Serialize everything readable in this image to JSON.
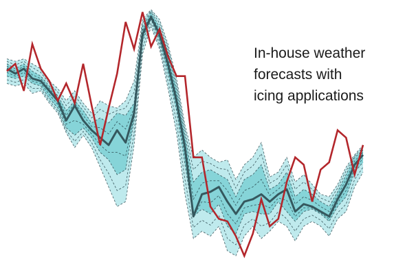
{
  "caption": {
    "lines": [
      "In-house weather",
      "forecasts with",
      "icing applications"
    ]
  },
  "colors": {
    "band_outer": "#bfeaed",
    "band_mid": "#86d4d8",
    "band_inner": "#4aaeb4",
    "dashed": "#1f3a40",
    "median": "#35585e",
    "observed": "#b3262b"
  },
  "chart_data": {
    "type": "line",
    "x_count": 43,
    "ylim": [
      0,
      100
    ],
    "grid": false,
    "axes_shown": false,
    "ensemble": {
      "min": [
        70,
        69,
        70,
        66,
        67,
        62,
        58,
        50,
        44,
        49,
        44,
        36,
        28,
        20,
        22,
        45,
        82,
        93,
        84,
        68,
        50,
        25,
        7,
        10,
        8,
        12,
        2,
        0,
        8,
        12,
        7,
        10,
        14,
        12,
        6,
        12,
        14,
        12,
        8,
        15,
        18,
        28,
        34
      ],
      "p25": [
        73,
        72,
        73,
        70,
        69,
        64,
        60,
        52,
        49,
        52,
        48,
        42,
        39,
        33,
        35,
        55,
        87,
        96,
        87,
        74,
        59,
        37,
        16,
        19,
        17,
        21,
        12,
        9,
        17,
        18,
        17,
        17,
        22,
        18,
        14,
        18,
        19,
        17,
        14,
        20,
        24,
        34,
        38
      ],
      "median": [
        76,
        74,
        76,
        72,
        71,
        67,
        63,
        55,
        61,
        55,
        51,
        48,
        45,
        51,
        46,
        58,
        90,
        97,
        90,
        78,
        63,
        44,
        16,
        25,
        26,
        28,
        22,
        17,
        22,
        23,
        25,
        22,
        25,
        27,
        18,
        21,
        20,
        18,
        16,
        23,
        29,
        37,
        41
      ],
      "p75": [
        78,
        76,
        78,
        75,
        73,
        69,
        65,
        59,
        63,
        59,
        54,
        56,
        54,
        58,
        57,
        62,
        93,
        99,
        93,
        83,
        68,
        49,
        30,
        34,
        35,
        33,
        31,
        24,
        31,
        33,
        37,
        27,
        29,
        34,
        24,
        27,
        25,
        22,
        20,
        26,
        33,
        40,
        43
      ],
      "max": [
        80,
        79,
        80,
        78,
        76,
        71,
        68,
        63,
        67,
        62,
        58,
        63,
        61,
        60,
        63,
        71,
        96,
        100,
        96,
        86,
        72,
        53,
        40,
        43,
        40,
        38,
        39,
        31,
        37,
        40,
        46,
        32,
        34,
        40,
        30,
        33,
        29,
        25,
        24,
        29,
        36,
        41,
        45
      ]
    },
    "observed": [
      75,
      78,
      67,
      86,
      76,
      71,
      63,
      70,
      62,
      78,
      61,
      45,
      60,
      74,
      95,
      84,
      99,
      85,
      92,
      81,
      73,
      73,
      40,
      40,
      20,
      15,
      14,
      8,
      0,
      9,
      23,
      12,
      15,
      30,
      40,
      37,
      22,
      35,
      38,
      51,
      48,
      33,
      45
    ]
  }
}
